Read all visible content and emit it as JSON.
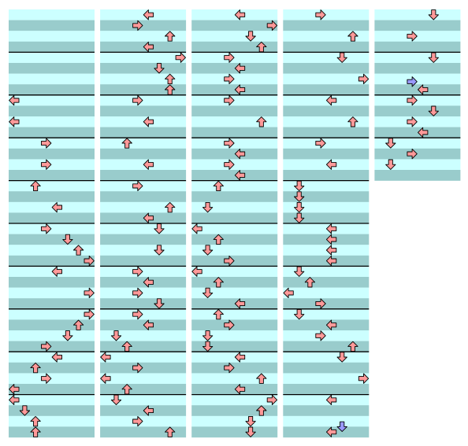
{
  "chart": {
    "beats_per_measure": 4,
    "lanes": 8,
    "colors": {
      "light": "#ccffff",
      "dark": "#99cccc",
      "note": "#ff9999",
      "special": "#9999ff",
      "measure_line": "#000000"
    },
    "columns": [
      {
        "measures": 10,
        "notes": [
          [
            8,
            0,
            "L"
          ],
          [
            10,
            0,
            "L"
          ],
          [
            12,
            3,
            "R"
          ],
          [
            14,
            3,
            "R"
          ],
          [
            16,
            2,
            "U"
          ],
          [
            18,
            4,
            "L"
          ],
          [
            20,
            3,
            "R"
          ],
          [
            21,
            5,
            "D"
          ],
          [
            22,
            6,
            "U"
          ],
          [
            23,
            7,
            "R"
          ],
          [
            24,
            4,
            "L"
          ],
          [
            26,
            7,
            "R"
          ],
          [
            28,
            7,
            "R"
          ],
          [
            29,
            6,
            "U"
          ],
          [
            30,
            5,
            "D"
          ],
          [
            31,
            3,
            "R"
          ],
          [
            32,
            4,
            "L"
          ],
          [
            33,
            2,
            "U"
          ],
          [
            34,
            3,
            "R"
          ],
          [
            35,
            0,
            "L"
          ],
          [
            36,
            0,
            "L"
          ],
          [
            37,
            1,
            "D"
          ],
          [
            38,
            2,
            "U"
          ],
          [
            39,
            2,
            "U"
          ]
        ]
      },
      {
        "measures": 10,
        "notes": [
          [
            0,
            4,
            "L"
          ],
          [
            1,
            3,
            "R"
          ],
          [
            2,
            6,
            "U"
          ],
          [
            3,
            4,
            "L"
          ],
          [
            4,
            7,
            "R"
          ],
          [
            5,
            5,
            "D"
          ],
          [
            6,
            6,
            "U"
          ],
          [
            7,
            6,
            "U"
          ],
          [
            8,
            3,
            "R"
          ],
          [
            10,
            4,
            "L"
          ],
          [
            12,
            2,
            "U"
          ],
          [
            14,
            4,
            "L"
          ],
          [
            16,
            3,
            "R"
          ],
          [
            18,
            6,
            "U"
          ],
          [
            19,
            4,
            "L"
          ],
          [
            20,
            5,
            "D"
          ],
          [
            22,
            5,
            "D"
          ],
          [
            24,
            3,
            "R"
          ],
          [
            25,
            4,
            "L"
          ],
          [
            26,
            3,
            "R"
          ],
          [
            27,
            5,
            "D"
          ],
          [
            28,
            3,
            "R"
          ],
          [
            29,
            4,
            "L"
          ],
          [
            30,
            1,
            "D"
          ],
          [
            31,
            2,
            "U"
          ],
          [
            32,
            0,
            "L"
          ],
          [
            33,
            3,
            "R"
          ],
          [
            34,
            0,
            "L"
          ],
          [
            35,
            2,
            "U"
          ],
          [
            36,
            1,
            "D"
          ],
          [
            37,
            4,
            "L"
          ],
          [
            38,
            3,
            "R"
          ],
          [
            39,
            6,
            "U"
          ]
        ]
      },
      {
        "measures": 10,
        "notes": [
          [
            0,
            4,
            "L"
          ],
          [
            1,
            7,
            "R"
          ],
          [
            2,
            5,
            "D"
          ],
          [
            3,
            6,
            "U"
          ],
          [
            4,
            3,
            "R"
          ],
          [
            5,
            4,
            "L"
          ],
          [
            6,
            3,
            "R"
          ],
          [
            7,
            4,
            "L"
          ],
          [
            8,
            3,
            "R"
          ],
          [
            10,
            6,
            "U"
          ],
          [
            12,
            3,
            "R"
          ],
          [
            13,
            4,
            "L"
          ],
          [
            14,
            3,
            "R"
          ],
          [
            15,
            4,
            "L"
          ],
          [
            16,
            2,
            "U"
          ],
          [
            18,
            1,
            "D"
          ],
          [
            20,
            0,
            "L"
          ],
          [
            21,
            2,
            "U"
          ],
          [
            22,
            1,
            "D"
          ],
          [
            23,
            3,
            "R"
          ],
          [
            24,
            0,
            "L"
          ],
          [
            25,
            2,
            "U"
          ],
          [
            26,
            1,
            "D"
          ],
          [
            27,
            4,
            "L"
          ],
          [
            28,
            2,
            "U"
          ],
          [
            29,
            3,
            "R"
          ],
          [
            30,
            1,
            "D"
          ],
          [
            31,
            1,
            "D"
          ],
          [
            32,
            4,
            "L"
          ],
          [
            33,
            3,
            "R"
          ],
          [
            34,
            6,
            "U"
          ],
          [
            35,
            4,
            "L"
          ],
          [
            36,
            7,
            "R"
          ],
          [
            37,
            6,
            "U"
          ],
          [
            38,
            5,
            "D"
          ],
          [
            39,
            5,
            "D"
          ]
        ]
      },
      {
        "measures": 10,
        "notes": [
          [
            0,
            3,
            "R"
          ],
          [
            2,
            6,
            "U"
          ],
          [
            4,
            5,
            "D"
          ],
          [
            6,
            7,
            "R"
          ],
          [
            8,
            4,
            "L"
          ],
          [
            10,
            6,
            "U"
          ],
          [
            12,
            3,
            "R"
          ],
          [
            14,
            4,
            "L"
          ],
          [
            16,
            1,
            "D"
          ],
          [
            17,
            1,
            "D"
          ],
          [
            18,
            1,
            "D"
          ],
          [
            19,
            1,
            "D"
          ],
          [
            20,
            4,
            "L"
          ],
          [
            21,
            4,
            "L"
          ],
          [
            22,
            4,
            "L"
          ],
          [
            23,
            4,
            "L"
          ],
          [
            24,
            1,
            "D"
          ],
          [
            25,
            2,
            "U"
          ],
          [
            26,
            0,
            "L"
          ],
          [
            27,
            3,
            "R"
          ],
          [
            28,
            1,
            "D"
          ],
          [
            29,
            4,
            "L"
          ],
          [
            30,
            3,
            "R"
          ],
          [
            31,
            6,
            "U"
          ],
          [
            32,
            5,
            "D"
          ],
          [
            34,
            7,
            "R"
          ],
          [
            36,
            4,
            "L"
          ],
          [
            38.5,
            5,
            "D",
            1
          ],
          [
            39,
            4,
            "L"
          ]
        ]
      },
      {
        "measures": 4,
        "notes": [
          [
            0,
            5,
            "D"
          ],
          [
            2,
            3,
            "R"
          ],
          [
            4,
            5,
            "D"
          ],
          [
            6.25,
            3,
            "R",
            1
          ],
          [
            7,
            4,
            "L"
          ],
          [
            8,
            3,
            "R"
          ],
          [
            9,
            5,
            "D"
          ],
          [
            10,
            3,
            "R"
          ],
          [
            11,
            4,
            "L"
          ],
          [
            12,
            1,
            "D"
          ],
          [
            13,
            3,
            "R"
          ],
          [
            14,
            1,
            "D"
          ]
        ]
      }
    ]
  }
}
